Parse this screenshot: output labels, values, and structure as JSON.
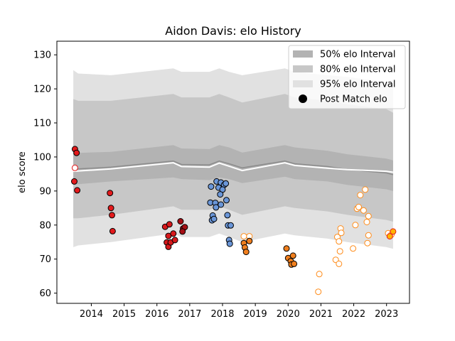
{
  "chart_data": {
    "type": "scatter",
    "title": "Aidon Davis: elo History",
    "xlabel": "",
    "ylabel": "elo score",
    "xlim": [
      2012.95,
      2023.7
    ],
    "ylim": [
      57,
      134
    ],
    "x_ticks": [
      2014,
      2015,
      2016,
      2017,
      2018,
      2019,
      2020,
      2021,
      2022,
      2023
    ],
    "y_ticks": [
      60,
      70,
      80,
      90,
      100,
      110,
      120,
      130
    ],
    "grid": false,
    "legend": {
      "placement": "top-right",
      "entries": [
        {
          "label": "50% elo Interval",
          "color": "#b3b3b3"
        },
        {
          "label": "80% elo Interval",
          "color": "#c7c7c7"
        },
        {
          "label": "95% elo Interval",
          "color": "#e1e1e1"
        },
        {
          "label": "Post Match elo",
          "color": "#000000"
        }
      ]
    },
    "bands": {
      "x": [
        2013.45,
        2013.6,
        2014.6,
        2016.5,
        2016.75,
        2017.6,
        2017.9,
        2018.2,
        2018.6,
        2019.9,
        2020.2,
        2021.2,
        2021.8,
        2023.0,
        2023.2
      ],
      "mean": [
        96.5,
        96.5,
        97.0,
        98.8,
        97.8,
        97.7,
        98.8,
        98.0,
        96.8,
        98.8,
        98.0,
        97.2,
        96.3,
        95.3,
        94.8
      ],
      "q25": [
        92.0,
        92.0,
        92.8,
        94.0,
        93.5,
        93.2,
        94.0,
        93.5,
        92.3,
        94.2,
        93.5,
        92.8,
        91.8,
        90.5,
        90.0
      ],
      "q75": [
        101.2,
        101.2,
        101.5,
        103.5,
        102.5,
        102.3,
        103.5,
        102.8,
        101.3,
        103.5,
        102.8,
        101.8,
        100.8,
        99.5,
        99.0
      ],
      "q10": [
        82.0,
        82.0,
        83.0,
        85.5,
        84.5,
        84.5,
        85.5,
        84.5,
        83.0,
        85.5,
        85.0,
        84.0,
        83.0,
        81.5,
        81.0
      ],
      "q90": [
        117.0,
        116.5,
        116.5,
        118.5,
        117.5,
        117.5,
        118.5,
        117.5,
        116.0,
        118.5,
        117.5,
        116.5,
        115.5,
        114.0,
        113.0
      ],
      "q025": [
        73.5,
        74.0,
        75.0,
        77.5,
        76.5,
        76.5,
        77.5,
        76.5,
        75.0,
        77.5,
        77.0,
        76.0,
        75.0,
        73.5,
        73.0
      ],
      "q975": [
        125.5,
        124.5,
        124.0,
        126.0,
        125.0,
        125.0,
        126.0,
        125.0,
        124.0,
        126.0,
        125.0,
        124.0,
        123.5,
        122.0,
        121.5
      ],
      "line_color": "#8c8c8c",
      "white_line": [
        {
          "x": 2013.45,
          "y": 95.8
        },
        {
          "x": 2014.6,
          "y": 96.5
        },
        {
          "x": 2016.5,
          "y": 98.3
        },
        {
          "x": 2016.75,
          "y": 97.2
        },
        {
          "x": 2017.6,
          "y": 97.0
        },
        {
          "x": 2017.9,
          "y": 98.2
        },
        {
          "x": 2018.2,
          "y": 97.3
        },
        {
          "x": 2018.6,
          "y": 96.0
        },
        {
          "x": 2019.9,
          "y": 98.3
        },
        {
          "x": 2020.2,
          "y": 97.5
        },
        {
          "x": 2021.2,
          "y": 96.7
        },
        {
          "x": 2021.8,
          "y": 96.3
        },
        {
          "x": 2023.0,
          "y": 95.8
        },
        {
          "x": 2023.2,
          "y": 95.5
        }
      ]
    },
    "series": [
      {
        "color": "#e31a1c",
        "edge": "#000000",
        "hollow": false,
        "points": [
          [
            2013.5,
            102.3
          ],
          [
            2013.55,
            101.2
          ],
          [
            2013.48,
            92.8
          ],
          [
            2013.57,
            90.2
          ],
          [
            2014.57,
            89.4
          ],
          [
            2014.6,
            85.0
          ],
          [
            2014.63,
            82.9
          ],
          [
            2014.65,
            78.2
          ]
        ]
      },
      {
        "color": "#ffffff",
        "edge": "#e31a1c",
        "hollow": true,
        "points": [
          [
            2013.5,
            96.8
          ]
        ]
      },
      {
        "color": "#d7191c",
        "edge": "#000000",
        "hollow": false,
        "points": [
          [
            2016.25,
            79.5
          ],
          [
            2016.38,
            80.2
          ],
          [
            2016.3,
            74.9
          ],
          [
            2016.35,
            73.6
          ],
          [
            2016.42,
            74.9
          ],
          [
            2016.35,
            76.8
          ],
          [
            2016.5,
            77.5
          ],
          [
            2016.55,
            75.6
          ]
        ]
      },
      {
        "color": "#a50f15",
        "edge": "#000000",
        "hollow": false,
        "points": [
          [
            2016.72,
            81.1
          ],
          [
            2016.8,
            79.0
          ],
          [
            2016.85,
            79.4
          ],
          [
            2016.78,
            78.1
          ]
        ]
      },
      {
        "color": "#6a96d8",
        "edge": "#000000",
        "hollow": false,
        "points": [
          [
            2017.65,
            91.3
          ],
          [
            2017.82,
            92.8
          ],
          [
            2017.95,
            92.5
          ],
          [
            2018.05,
            91.8
          ],
          [
            2018.1,
            92.2
          ],
          [
            2017.88,
            91.0
          ],
          [
            2018.0,
            90.4
          ],
          [
            2017.93,
            89.0
          ],
          [
            2018.12,
            87.3
          ],
          [
            2017.63,
            86.6
          ],
          [
            2017.78,
            86.5
          ],
          [
            2017.95,
            86.0
          ],
          [
            2017.8,
            85.2
          ],
          [
            2017.7,
            82.8
          ],
          [
            2017.68,
            81.4
          ],
          [
            2017.74,
            81.8
          ],
          [
            2018.15,
            82.9
          ],
          [
            2018.17,
            79.9
          ],
          [
            2018.25,
            79.9
          ],
          [
            2018.2,
            75.6
          ],
          [
            2018.22,
            74.5
          ]
        ]
      },
      {
        "color": "#ffffff",
        "edge": "#ff8c1a",
        "hollow": true,
        "points": [
          [
            2018.65,
            76.7
          ],
          [
            2018.82,
            76.7
          ]
        ]
      },
      {
        "color": "#f07f1e",
        "edge": "#000000",
        "hollow": false,
        "points": [
          [
            2018.65,
            74.7
          ],
          [
            2018.68,
            73.4
          ],
          [
            2018.72,
            72.1
          ],
          [
            2018.82,
            75.3
          ],
          [
            2019.95,
            73.1
          ],
          [
            2020.0,
            70.3
          ],
          [
            2020.15,
            71.0
          ],
          [
            2020.08,
            69.4
          ],
          [
            2020.1,
            68.4
          ],
          [
            2020.18,
            68.6
          ]
        ]
      },
      {
        "color": "#ffffff",
        "edge": "#ff8c1a",
        "hollow": true,
        "points": [
          [
            2020.95,
            65.6
          ],
          [
            2020.92,
            60.4
          ],
          [
            2021.45,
            69.8
          ],
          [
            2021.55,
            68.6
          ],
          [
            2021.5,
            76.5
          ],
          [
            2021.55,
            75.2
          ],
          [
            2021.6,
            79.0
          ],
          [
            2021.62,
            77.7
          ],
          [
            2021.58,
            72.3
          ],
          [
            2021.98,
            73.1
          ],
          [
            2022.05,
            80.0
          ],
          [
            2022.1,
            84.8
          ],
          [
            2022.15,
            85.3
          ],
          [
            2022.2,
            88.8
          ],
          [
            2022.3,
            84.3
          ],
          [
            2022.35,
            90.4
          ],
          [
            2022.4,
            80.9
          ],
          [
            2022.42,
            74.7
          ],
          [
            2022.45,
            77.0
          ],
          [
            2022.45,
            82.6
          ],
          [
            2023.05,
            77.6
          ],
          [
            2023.15,
            77.2
          ]
        ]
      },
      {
        "color": "#ffb400",
        "edge": "#e31a1c",
        "hollow": false,
        "points": [
          [
            2023.1,
            76.7
          ],
          [
            2023.2,
            78.1
          ]
        ]
      }
    ]
  }
}
